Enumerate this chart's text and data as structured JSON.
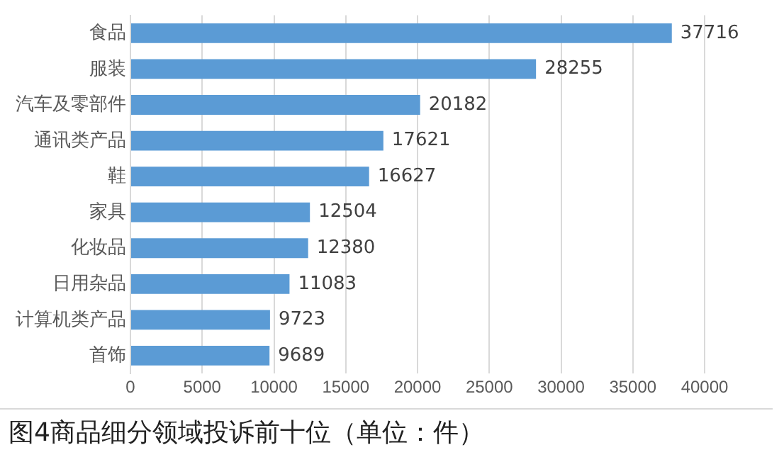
{
  "chart_data": {
    "type": "bar",
    "orientation": "horizontal",
    "categories": [
      "食品",
      "服装",
      "汽车及零部件",
      "通讯类产品",
      "鞋",
      "家具",
      "化妆品",
      "日用杂品",
      "计算机类产品",
      "首饰"
    ],
    "values": [
      37716,
      28255,
      20182,
      17621,
      16627,
      12504,
      12380,
      11083,
      9723,
      9689
    ],
    "color": "#5b9bd5",
    "xlim": [
      0,
      40000
    ],
    "xticks": [
      0,
      5000,
      10000,
      15000,
      20000,
      25000,
      30000,
      35000,
      40000
    ],
    "grid": "x",
    "data_labels": true,
    "legend": false,
    "annotations": [
      "图4商品细分领域投诉前十位（单位：件）"
    ]
  }
}
